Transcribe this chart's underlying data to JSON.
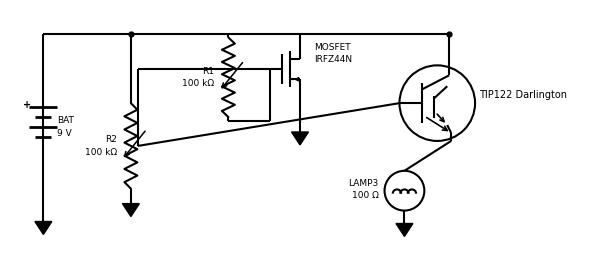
{
  "bg_color": "#ffffff",
  "line_color": "#000000",
  "lw": 1.5,
  "bat_label": "BAT\n9 V",
  "r1_label": "R1\n100 kΩ",
  "r2_label": "R2\n100 kΩ",
  "mosfet_label": "MOSFET\nIRFZ44N",
  "tip_label": "TIP122 Darlington",
  "lamp_label": "LAMP3\n100 Ω"
}
